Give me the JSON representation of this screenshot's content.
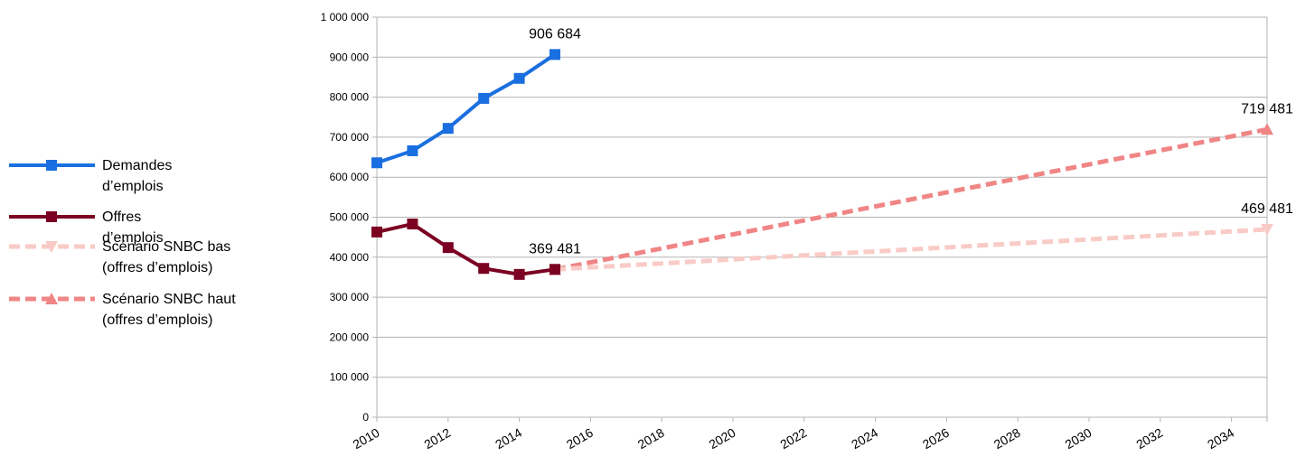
{
  "chart_data": {
    "type": "line",
    "xlim": [
      2010,
      2035
    ],
    "xticks": [
      2010,
      2012,
      2014,
      2016,
      2018,
      2020,
      2022,
      2024,
      2026,
      2028,
      2030,
      2032,
      2034
    ],
    "ylim": [
      0,
      1000000
    ],
    "yticks": [
      0,
      {
        "value": 100000,
        "label": "100 000"
      },
      {
        "value": 200000,
        "label": "200 000"
      },
      {
        "value": 300000,
        "label": "300 000"
      },
      {
        "value": 400000,
        "label": "400 000"
      },
      {
        "value": 500000,
        "label": "500 000"
      },
      {
        "value": 600000,
        "label": "600 000"
      },
      {
        "value": 700000,
        "label": "700 000"
      },
      {
        "value": 800000,
        "label": "800 000"
      },
      {
        "value": 900000,
        "label": "900 000"
      },
      {
        "value": 1000000,
        "label": "1 000 000"
      }
    ],
    "grid": true,
    "legend": "left",
    "series": [
      {
        "name": "Demandes d’emplois",
        "color": "#1a6fe0",
        "marker": "square",
        "dashed": false,
        "x": [
          2010,
          2011,
          2012,
          2013,
          2014,
          2015
        ],
        "values": [
          636000,
          666000,
          722000,
          797000,
          847000,
          906684
        ],
        "value_labels": [
          null,
          null,
          null,
          null,
          null,
          "906 684"
        ]
      },
      {
        "name": "Offres d’emplois",
        "color": "#7b0022",
        "marker": "square",
        "dashed": false,
        "x": [
          2010,
          2011,
          2012,
          2013,
          2014,
          2015
        ],
        "values": [
          463000,
          483000,
          424000,
          372000,
          357000,
          369481
        ],
        "value_labels": [
          null,
          null,
          null,
          null,
          null,
          "369 481"
        ]
      },
      {
        "name": "Scénario SNBC bas (offres d’emplois)",
        "color": "#f9cbc6",
        "marker": "triangle-down",
        "dashed": true,
        "x": [
          2015,
          2035
        ],
        "values": [
          369481,
          469481
        ],
        "value_labels": [
          null,
          "469 481"
        ]
      },
      {
        "name": "Scénario SNBC haut (offres d’emplois)",
        "color": "#f08585",
        "marker": "triangle-up",
        "dashed": true,
        "x": [
          2015,
          2035
        ],
        "values": [
          369481,
          719481
        ],
        "value_labels": [
          null,
          "719 481"
        ]
      }
    ]
  }
}
